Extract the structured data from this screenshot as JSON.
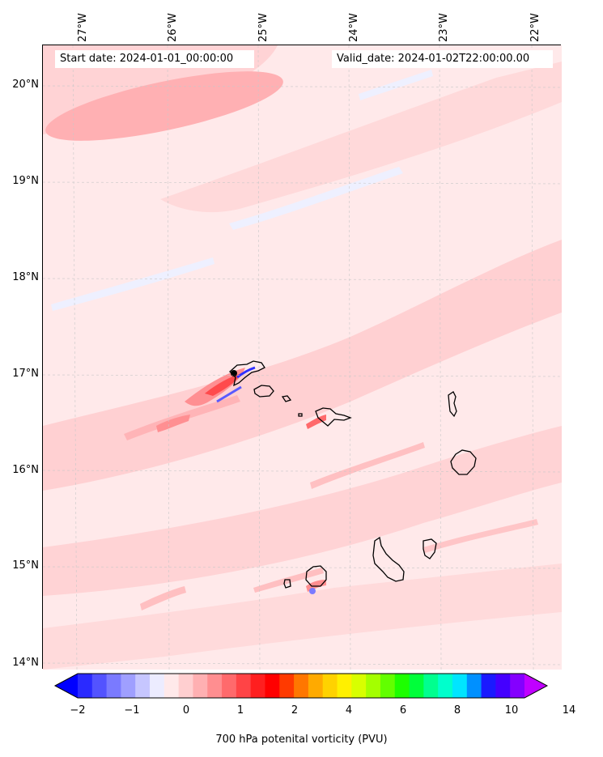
{
  "header": {
    "start_date": "Start date: 2024-01-01_00:00:00",
    "valid_date": "Valid_date: 2024-01-02T22:00:00.00"
  },
  "longitude_labels": [
    "27°W",
    "26°W",
    "25°W",
    "24°W",
    "23°W",
    "22°W"
  ],
  "latitude_labels": [
    "20°N",
    "19°N",
    "18°N",
    "17°N",
    "16°N",
    "15°N",
    "14°N"
  ],
  "colorbar": {
    "label": "700 hPa potenital vorticity (PVU)",
    "tick_labels": [
      "−2",
      "−1",
      "0",
      "1",
      "2",
      "4",
      "6",
      "8",
      "10",
      "14"
    ],
    "colors": [
      "#0000ff",
      "#2a2aff",
      "#5353ff",
      "#7a7aff",
      "#9f9fff",
      "#c6c6ff",
      "#ececff",
      "#ffe9ea",
      "#ffcfd0",
      "#ffb0b2",
      "#ff8e90",
      "#ff6a6c",
      "#ff4446",
      "#ff1f1f",
      "#ff0000",
      "#ff3a00",
      "#ff7700",
      "#ffaa00",
      "#ffd200",
      "#fff000",
      "#d8ff00",
      "#a4ff00",
      "#62ff00",
      "#1dff00",
      "#00ff3a",
      "#00ff8f",
      "#00ffcc",
      "#00e5ff",
      "#0090ff",
      "#1a1aff",
      "#4400ff",
      "#8400ff",
      "#c000ff"
    ]
  }
}
